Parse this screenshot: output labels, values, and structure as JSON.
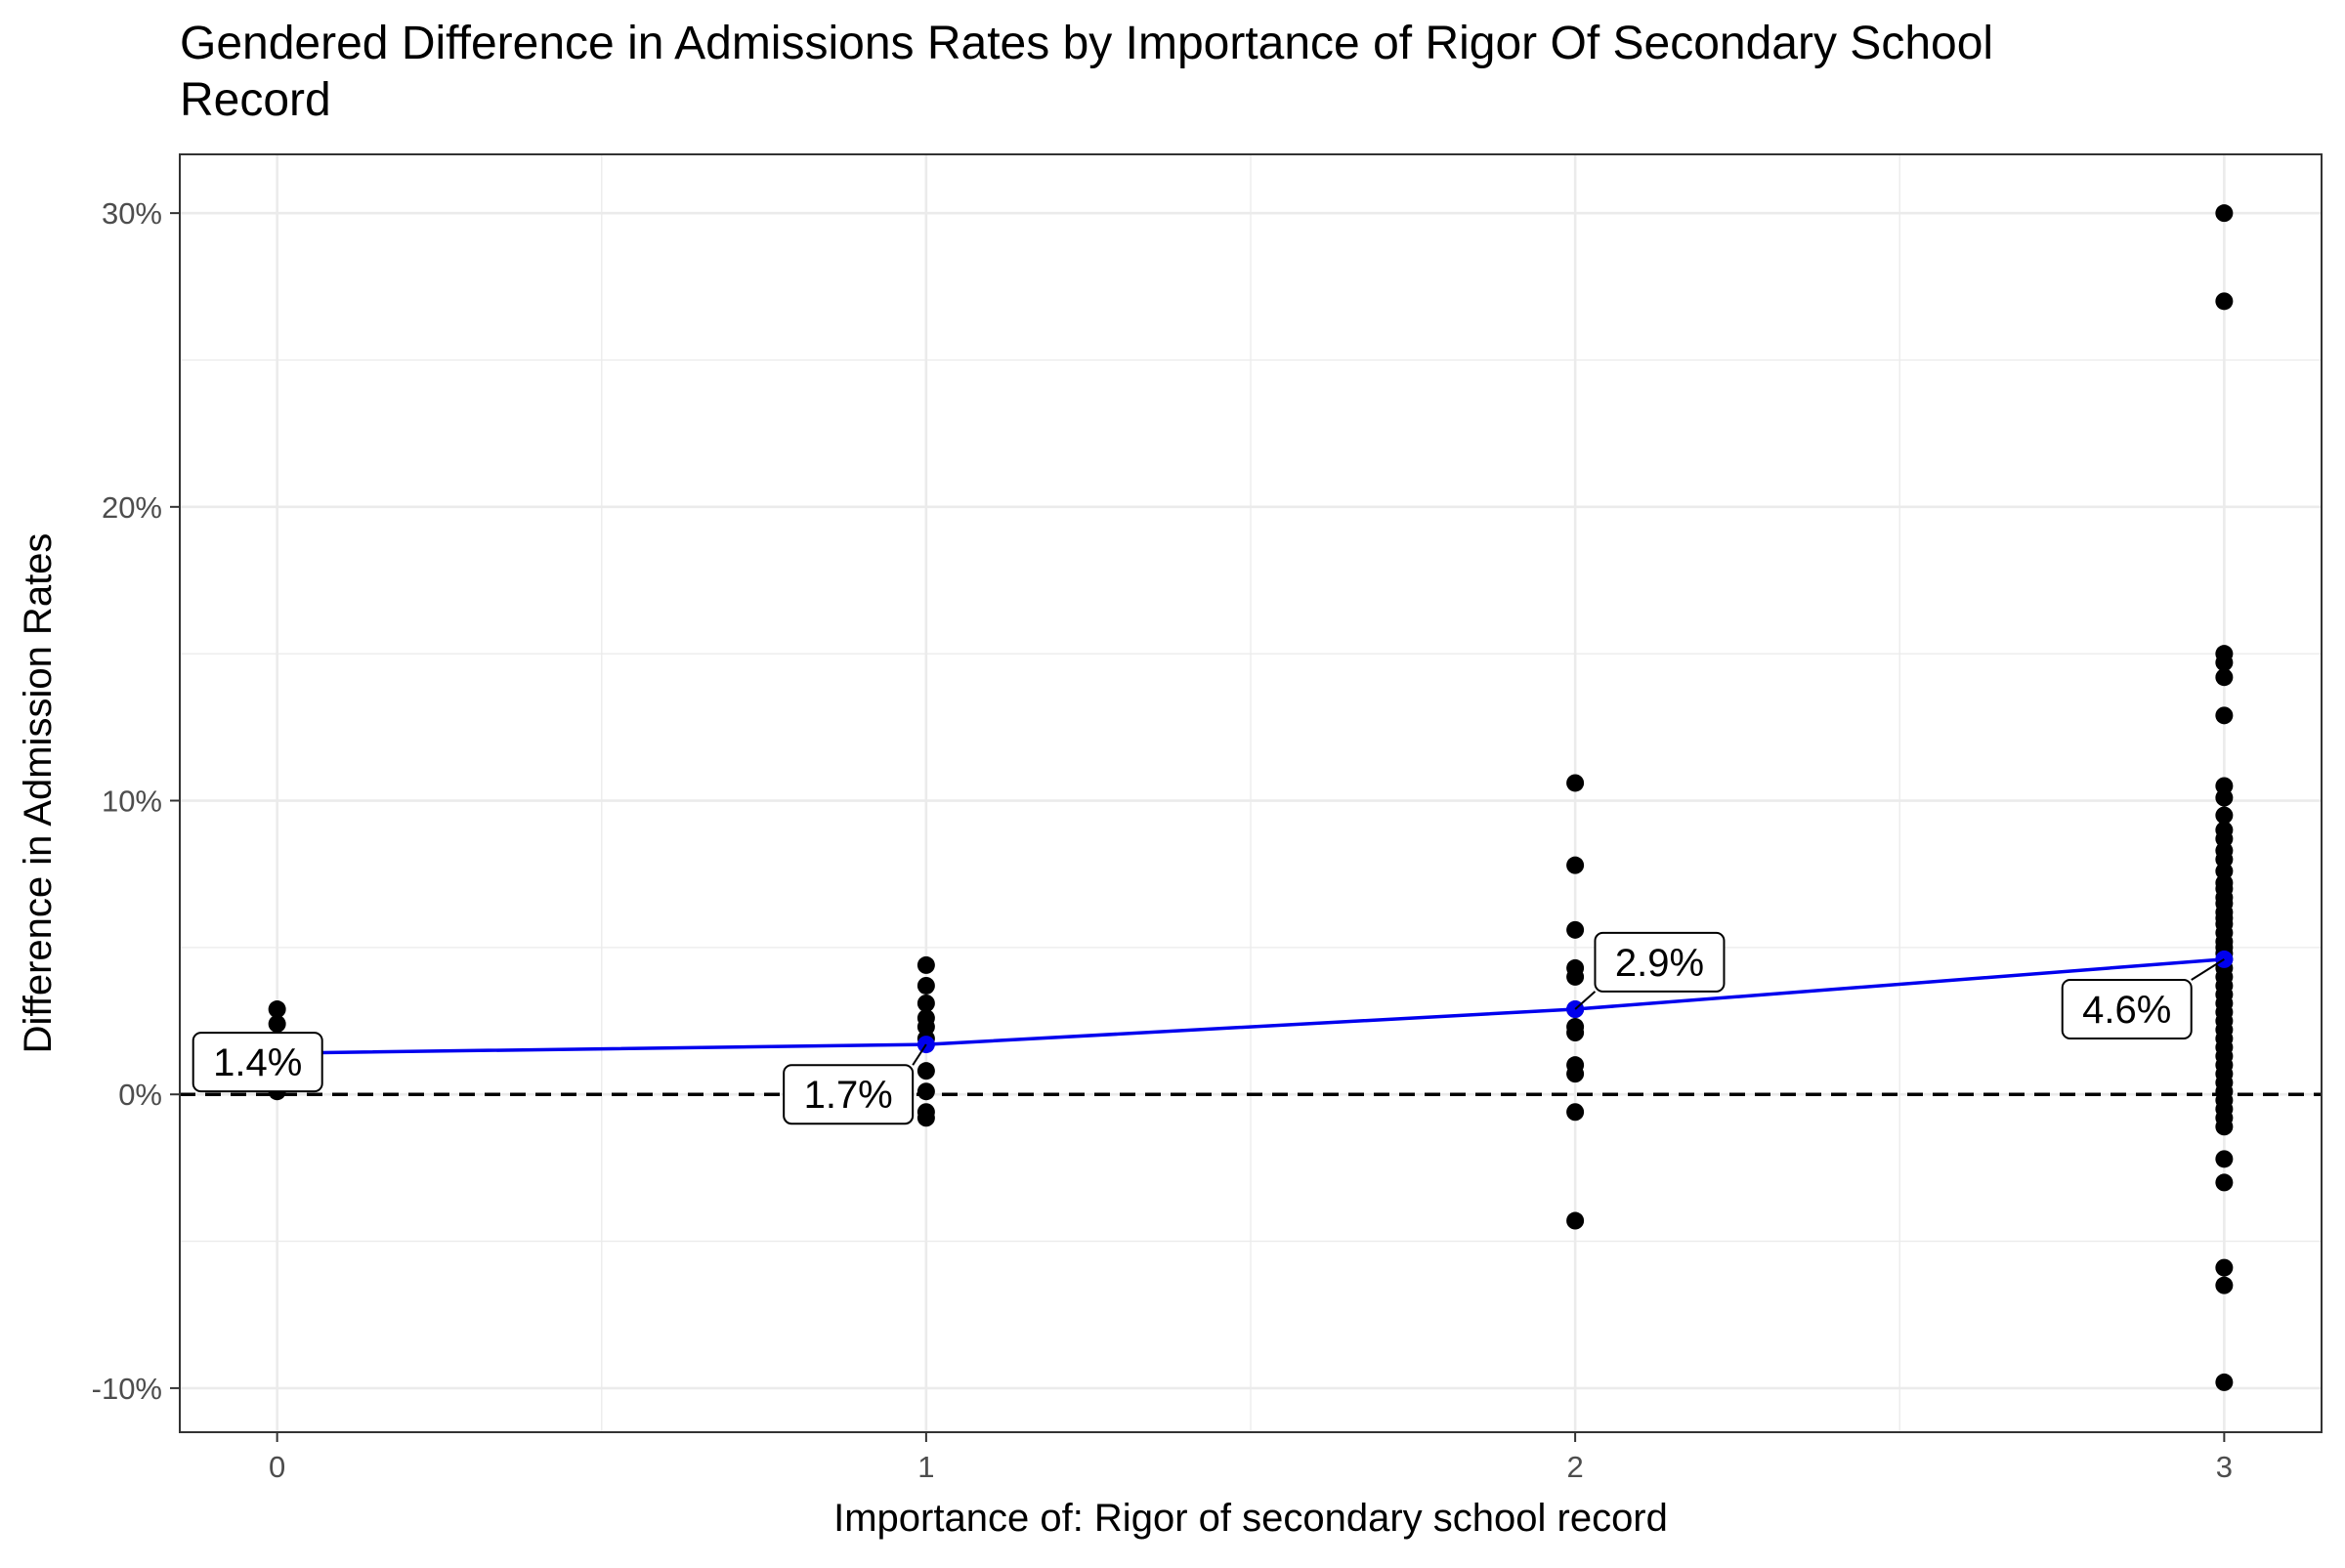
{
  "chart_data": {
    "type": "scatter",
    "title": "Gendered Difference in Admissions Rates by Importance of Rigor Of Secondary School Record",
    "title_lines": [
      "Gendered Difference in Admissions Rates by Importance of Rigor Of Secondary School",
      "Record"
    ],
    "xlabel": "Importance of: Rigor of secondary school record",
    "ylabel": "Difference in Admission Rates",
    "xlim": [
      -0.15,
      3.15
    ],
    "ylim": [
      -11.5,
      32
    ],
    "x_ticks": [
      0,
      1,
      2,
      3
    ],
    "x_tick_labels": [
      "0",
      "1",
      "2",
      "3"
    ],
    "y_ticks": [
      -10,
      0,
      10,
      20,
      30
    ],
    "y_tick_labels": [
      "-10%",
      "0%",
      "10%",
      "20%",
      "30%"
    ],
    "grid": true,
    "reference_line": {
      "y": 0,
      "style": "dashed",
      "color": "#000000"
    },
    "colors": {
      "points": "#000000",
      "mean": "#0000ee",
      "grid": "#ebebeb",
      "panel_border": "#333333"
    },
    "points": [
      {
        "x": 0,
        "y": 2.9
      },
      {
        "x": 0,
        "y": 2.4
      },
      {
        "x": 0,
        "y": 1.2
      },
      {
        "x": 0,
        "y": 1.0
      },
      {
        "x": 0,
        "y": 0.9
      },
      {
        "x": 0,
        "y": 0.1
      },
      {
        "x": 1,
        "y": 4.4
      },
      {
        "x": 1,
        "y": 3.7
      },
      {
        "x": 1,
        "y": 3.1
      },
      {
        "x": 1,
        "y": 2.6
      },
      {
        "x": 1,
        "y": 2.3
      },
      {
        "x": 1,
        "y": 1.9
      },
      {
        "x": 1,
        "y": 0.8
      },
      {
        "x": 1,
        "y": 0.1
      },
      {
        "x": 1,
        "y": -0.6
      },
      {
        "x": 1,
        "y": -0.8
      },
      {
        "x": 2,
        "y": 10.6
      },
      {
        "x": 2,
        "y": 7.8
      },
      {
        "x": 2,
        "y": 5.6
      },
      {
        "x": 2,
        "y": 4.3
      },
      {
        "x": 2,
        "y": 4.0
      },
      {
        "x": 2,
        "y": 2.9
      },
      {
        "x": 2,
        "y": 2.3
      },
      {
        "x": 2,
        "y": 2.1
      },
      {
        "x": 2,
        "y": 1.0
      },
      {
        "x": 2,
        "y": 0.7
      },
      {
        "x": 2,
        "y": -0.6
      },
      {
        "x": 2,
        "y": -4.3
      },
      {
        "x": 3,
        "y": 30.0
      },
      {
        "x": 3,
        "y": 27.0
      },
      {
        "x": 3,
        "y": 15.0
      },
      {
        "x": 3,
        "y": 14.7
      },
      {
        "x": 3,
        "y": 14.2
      },
      {
        "x": 3,
        "y": 12.9
      },
      {
        "x": 3,
        "y": 10.5
      },
      {
        "x": 3,
        "y": 10.1
      },
      {
        "x": 3,
        "y": 9.5
      },
      {
        "x": 3,
        "y": 9.0
      },
      {
        "x": 3,
        "y": 8.7
      },
      {
        "x": 3,
        "y": 8.3
      },
      {
        "x": 3,
        "y": 8.0
      },
      {
        "x": 3,
        "y": 7.6
      },
      {
        "x": 3,
        "y": 7.2
      },
      {
        "x": 3,
        "y": 7.0
      },
      {
        "x": 3,
        "y": 6.7
      },
      {
        "x": 3,
        "y": 6.5
      },
      {
        "x": 3,
        "y": 6.2
      },
      {
        "x": 3,
        "y": 6.0
      },
      {
        "x": 3,
        "y": 5.8
      },
      {
        "x": 3,
        "y": 5.5
      },
      {
        "x": 3,
        "y": 5.2
      },
      {
        "x": 3,
        "y": 5.0
      },
      {
        "x": 3,
        "y": 4.8
      },
      {
        "x": 3,
        "y": 4.6
      },
      {
        "x": 3,
        "y": 4.3
      },
      {
        "x": 3,
        "y": 4.0
      },
      {
        "x": 3,
        "y": 3.7
      },
      {
        "x": 3,
        "y": 3.4
      },
      {
        "x": 3,
        "y": 3.1
      },
      {
        "x": 3,
        "y": 2.8
      },
      {
        "x": 3,
        "y": 2.5
      },
      {
        "x": 3,
        "y": 2.2
      },
      {
        "x": 3,
        "y": 1.9
      },
      {
        "x": 3,
        "y": 1.6
      },
      {
        "x": 3,
        "y": 1.3
      },
      {
        "x": 3,
        "y": 1.0
      },
      {
        "x": 3,
        "y": 0.7
      },
      {
        "x": 3,
        "y": 0.4
      },
      {
        "x": 3,
        "y": 0.1
      },
      {
        "x": 3,
        "y": -0.2
      },
      {
        "x": 3,
        "y": -0.5
      },
      {
        "x": 3,
        "y": -0.8
      },
      {
        "x": 3,
        "y": -1.1
      },
      {
        "x": 3,
        "y": -2.2
      },
      {
        "x": 3,
        "y": -3.0
      },
      {
        "x": 3,
        "y": -5.9
      },
      {
        "x": 3,
        "y": -6.5
      },
      {
        "x": 3,
        "y": -9.8
      }
    ],
    "series": [
      {
        "x": [
          0,
          1,
          2,
          3
        ],
        "values": [
          1.4,
          1.7,
          2.9,
          4.6
        ],
        "labels": [
          "1.4%",
          "1.7%",
          "2.9%",
          "4.6%"
        ],
        "label_offsets": [
          {
            "dx": -0.03,
            "dy": -0.3
          },
          {
            "dx": -0.12,
            "dy": -1.7
          },
          {
            "dx": 0.13,
            "dy": 1.6
          },
          {
            "dx": -0.15,
            "dy": -1.7
          }
        ]
      }
    ]
  }
}
